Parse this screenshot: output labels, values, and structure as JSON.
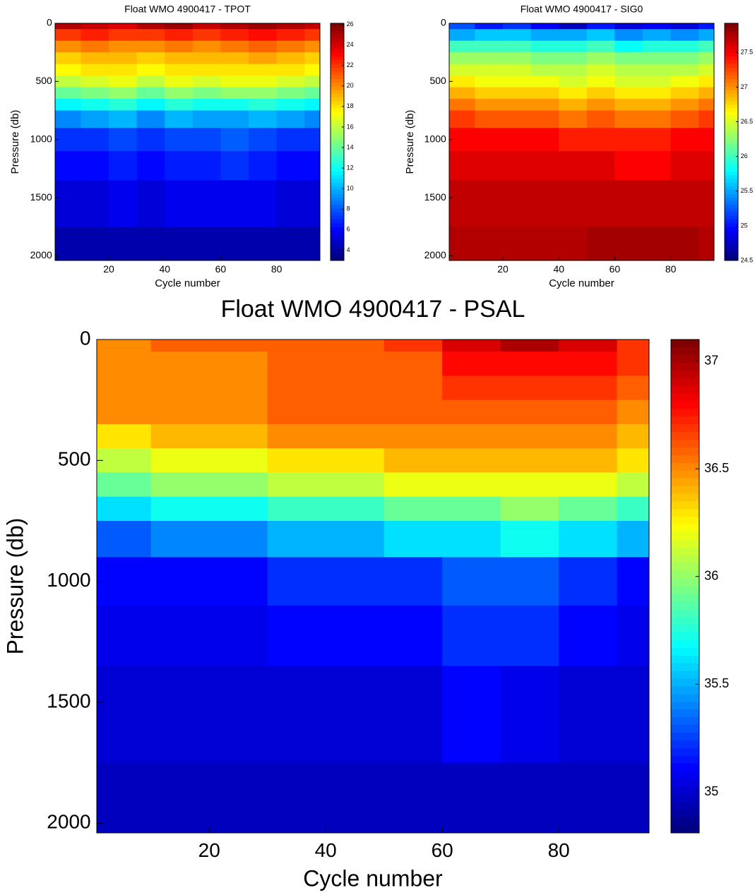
{
  "chart_data": [
    {
      "type": "heatmap",
      "title": "Float WMO 4900417 - TPOT",
      "xlabel": "Cycle number",
      "ylabel": "Pressure (db)",
      "colormap": "jet",
      "y_reversed": true,
      "x": [
        5,
        15,
        25,
        35,
        45,
        55,
        65,
        75,
        85,
        95
      ],
      "y": [
        0,
        100,
        200,
        300,
        400,
        500,
        600,
        700,
        800,
        1000,
        1200,
        1500,
        2000
      ],
      "z": [
        [
          25,
          24.5,
          24,
          25,
          25.5,
          24.5,
          25,
          25.5,
          25,
          24.5
        ],
        [
          22,
          22.5,
          22,
          22,
          22.5,
          22,
          22.5,
          23,
          22.5,
          22
        ],
        [
          20,
          20.5,
          20,
          20,
          20.5,
          20,
          20.5,
          21,
          20.5,
          20
        ],
        [
          18.5,
          19,
          19,
          18.5,
          19,
          19,
          19,
          19.5,
          19,
          18.5
        ],
        [
          17.5,
          18,
          18,
          17.5,
          18,
          18,
          18,
          18,
          18,
          17.5
        ],
        [
          16,
          16.5,
          17,
          16,
          17,
          16.5,
          17,
          17,
          16.5,
          16
        ],
        [
          14,
          14.5,
          15,
          14,
          15,
          14.5,
          15,
          15,
          14.5,
          14
        ],
        [
          11.5,
          12,
          12.5,
          11.5,
          12.5,
          12,
          12,
          12.5,
          12,
          11.5
        ],
        [
          9,
          9.5,
          10,
          9,
          10,
          9.5,
          9.5,
          10,
          9.5,
          9
        ],
        [
          7,
          7,
          7.5,
          7,
          7.5,
          7.5,
          8,
          7.5,
          7,
          7
        ],
        [
          6,
          6,
          6.5,
          6,
          6.5,
          6.5,
          7,
          6.5,
          6,
          6
        ],
        [
          5,
          5,
          5.5,
          5,
          5.5,
          5.5,
          5.5,
          5.5,
          5,
          5
        ],
        [
          4,
          4,
          4,
          4,
          4,
          4,
          4,
          4,
          4,
          4
        ]
      ],
      "xlim": [
        0.8,
        95.5
      ],
      "ylim": [
        0,
        2040
      ],
      "xticks": [
        20,
        40,
        60,
        80
      ],
      "yticks": [
        0,
        500,
        1000,
        1500,
        2000
      ],
      "clim": [
        3,
        26.1
      ],
      "cticks": [
        4,
        6,
        8,
        10,
        12,
        14,
        16,
        18,
        20,
        22,
        24,
        26
      ]
    },
    {
      "type": "heatmap",
      "title": "Float WMO 4900417 - SIG0",
      "xlabel": "Cycle number",
      "ylabel": "Pressure (db)",
      "colormap": "jet",
      "y_reversed": true,
      "x": [
        5,
        15,
        25,
        35,
        45,
        55,
        65,
        75,
        85,
        95
      ],
      "y": [
        0,
        100,
        200,
        300,
        400,
        500,
        600,
        700,
        800,
        1000,
        1200,
        1500,
        2000
      ],
      "z": [
        [
          25.2,
          25,
          25.1,
          24.9,
          24.7,
          25,
          24.8,
          24.9,
          24.8,
          25
        ],
        [
          25.5,
          25.6,
          25.6,
          25.5,
          25.5,
          25.6,
          25.4,
          25.5,
          25.4,
          25.5
        ],
        [
          26,
          26,
          26,
          25.9,
          25.9,
          26,
          25.8,
          25.9,
          25.9,
          26
        ],
        [
          26.3,
          26.3,
          26.3,
          26.2,
          26.2,
          26.3,
          26.2,
          26.2,
          26.2,
          26.3
        ],
        [
          26.5,
          26.5,
          26.5,
          26.4,
          26.4,
          26.5,
          26.4,
          26.4,
          26.4,
          26.5
        ],
        [
          26.7,
          26.6,
          26.6,
          26.6,
          26.5,
          26.6,
          26.5,
          26.5,
          26.6,
          26.7
        ],
        [
          26.9,
          26.8,
          26.8,
          26.8,
          26.7,
          26.8,
          26.7,
          26.7,
          26.8,
          26.9
        ],
        [
          27.1,
          27,
          27,
          27,
          26.9,
          27,
          26.9,
          26.9,
          27,
          27.1
        ],
        [
          27.3,
          27.2,
          27.2,
          27.2,
          27.1,
          27.2,
          27.1,
          27.1,
          27.2,
          27.3
        ],
        [
          27.5,
          27.5,
          27.5,
          27.5,
          27.4,
          27.4,
          27.4,
          27.4,
          27.5,
          27.5
        ],
        [
          27.6,
          27.6,
          27.6,
          27.6,
          27.6,
          27.6,
          27.5,
          27.5,
          27.6,
          27.6
        ],
        [
          27.7,
          27.7,
          27.7,
          27.7,
          27.7,
          27.7,
          27.7,
          27.7,
          27.7,
          27.7
        ],
        [
          27.75,
          27.75,
          27.75,
          27.75,
          27.75,
          27.8,
          27.8,
          27.8,
          27.8,
          27.75
        ]
      ],
      "xlim": [
        0.8,
        95.5
      ],
      "ylim": [
        0,
        2040
      ],
      "xticks": [
        20,
        40,
        60,
        80
      ],
      "yticks": [
        0,
        500,
        1000,
        1500,
        2000
      ],
      "clim": [
        24.5,
        27.92
      ],
      "cticks": [
        24.5,
        25,
        25.5,
        26,
        26.5,
        27,
        27.5
      ]
    },
    {
      "type": "heatmap",
      "title": "Float WMO 4900417 - PSAL",
      "xlabel": "Cycle number",
      "ylabel": "Pressure (db)",
      "colormap": "jet",
      "y_reversed": true,
      "x": [
        5,
        15,
        25,
        35,
        45,
        55,
        65,
        75,
        85,
        95
      ],
      "y": [
        0,
        100,
        200,
        300,
        400,
        500,
        600,
        700,
        800,
        1000,
        1200,
        1500,
        2000
      ],
      "z": [
        [
          36.5,
          36.6,
          36.6,
          36.6,
          36.6,
          36.7,
          36.9,
          37,
          36.9,
          36.7
        ],
        [
          36.5,
          36.5,
          36.5,
          36.6,
          36.6,
          36.6,
          36.8,
          36.8,
          36.8,
          36.7
        ],
        [
          36.5,
          36.5,
          36.5,
          36.6,
          36.6,
          36.6,
          36.7,
          36.7,
          36.7,
          36.6
        ],
        [
          36.5,
          36.5,
          36.5,
          36.6,
          36.6,
          36.6,
          36.6,
          36.6,
          36.6,
          36.5
        ],
        [
          36.3,
          36.4,
          36.4,
          36.5,
          36.5,
          36.5,
          36.5,
          36.5,
          36.5,
          36.4
        ],
        [
          36.1,
          36.2,
          36.2,
          36.3,
          36.3,
          36.4,
          36.4,
          36.4,
          36.4,
          36.3
        ],
        [
          35.9,
          36,
          36,
          36.1,
          36.1,
          36.2,
          36.2,
          36.2,
          36.2,
          36.1
        ],
        [
          35.6,
          35.7,
          35.7,
          35.8,
          35.8,
          35.9,
          35.9,
          36,
          35.9,
          35.8
        ],
        [
          35.3,
          35.4,
          35.4,
          35.5,
          35.5,
          35.6,
          35.6,
          35.7,
          35.6,
          35.5
        ],
        [
          35.1,
          35.1,
          35.1,
          35.2,
          35.2,
          35.2,
          35.3,
          35.3,
          35.2,
          35.1
        ],
        [
          35.05,
          35.05,
          35.05,
          35.1,
          35.1,
          35.1,
          35.2,
          35.2,
          35.1,
          35.05
        ],
        [
          35,
          35,
          35,
          35,
          35,
          35,
          35.1,
          35.05,
          35,
          35
        ],
        [
          34.95,
          34.95,
          34.95,
          34.95,
          34.95,
          34.95,
          34.95,
          34.95,
          34.95,
          34.95
        ]
      ],
      "xlim": [
        0.7,
        95.5
      ],
      "ylim": [
        0,
        2040
      ],
      "xticks": [
        20,
        40,
        60,
        80
      ],
      "yticks": [
        0,
        500,
        1000,
        1500,
        2000
      ],
      "clim": [
        34.81,
        37.1
      ],
      "cticks": [
        35,
        35.5,
        36,
        36.5,
        37
      ]
    }
  ]
}
